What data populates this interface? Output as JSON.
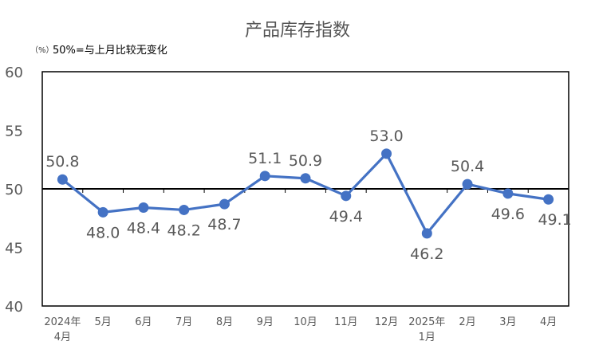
{
  "chart_data": {
    "type": "line",
    "title": "产品库存指数",
    "unit_label": "（%）",
    "reference_note": "50%=与上月比较无变化",
    "reference_value": 50,
    "categories": [
      [
        "2024年",
        "4月"
      ],
      [
        "5月"
      ],
      [
        "6月"
      ],
      [
        "7月"
      ],
      [
        "8月"
      ],
      [
        "9月"
      ],
      [
        "10月"
      ],
      [
        "11月"
      ],
      [
        "12月"
      ],
      [
        "2025年",
        "1月"
      ],
      [
        "2月"
      ],
      [
        "3月"
      ],
      [
        "4月"
      ]
    ],
    "series": [
      {
        "values": [
          50.8,
          48.0,
          48.4,
          48.2,
          48.7,
          51.1,
          50.9,
          49.4,
          53.0,
          46.2,
          50.4,
          49.6,
          49.1
        ]
      }
    ],
    "data_labels": [
      "50.8",
      "48.0",
      "48.4",
      "48.2",
      "48.7",
      "51.1",
      "50.9",
      "49.4",
      "53.0",
      "46.2",
      "50.4",
      "49.6",
      "49.1"
    ],
    "y_ticks": [
      "40",
      "45",
      "50",
      "55",
      "60"
    ],
    "ylim": [
      40,
      60
    ],
    "grid": false,
    "line_color": "#4472C4"
  }
}
